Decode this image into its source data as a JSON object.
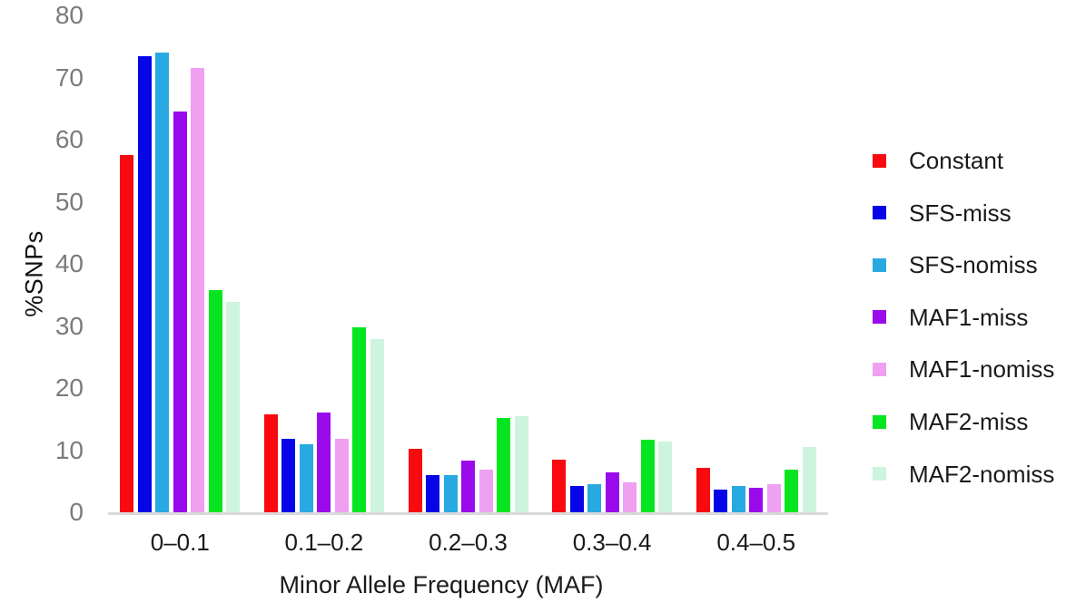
{
  "chart_data": {
    "type": "bar",
    "title": "",
    "xlabel": "Minor Allele Frequency (MAF)",
    "ylabel": "%SNPs",
    "ylim": [
      0,
      80
    ],
    "yticks": [
      0,
      10,
      20,
      30,
      40,
      50,
      60,
      70,
      80
    ],
    "grid": false,
    "legend_position": "right",
    "categories": [
      "0–0.1",
      "0.1–0.2",
      "0.2–0.3",
      "0.3–0.4",
      "0.4–0.5"
    ],
    "series": [
      {
        "name": "Constant",
        "color": "#f80a0e",
        "values": [
          57.5,
          15.8,
          10.2,
          8.4,
          7.2
        ]
      },
      {
        "name": "SFS-miss",
        "color": "#0505e8",
        "values": [
          73.5,
          11.9,
          6.0,
          4.3,
          3.6
        ]
      },
      {
        "name": "SFS-nomiss",
        "color": "#28a9e2",
        "values": [
          74.0,
          11.0,
          6.0,
          4.5,
          4.2
        ]
      },
      {
        "name": "MAF1-miss",
        "color": "#9a0aeb",
        "values": [
          64.5,
          16.0,
          8.3,
          6.4,
          3.9
        ]
      },
      {
        "name": "MAF1-nomiss",
        "color": "#efa0f0",
        "values": [
          71.5,
          11.9,
          6.8,
          4.8,
          4.5
        ]
      },
      {
        "name": "MAF2-miss",
        "color": "#05e620",
        "values": [
          35.8,
          29.8,
          15.2,
          11.7,
          6.9
        ]
      },
      {
        "name": "MAF2-nomiss",
        "color": "#cdf4de",
        "values": [
          33.9,
          27.9,
          15.5,
          11.4,
          10.5
        ]
      }
    ]
  }
}
